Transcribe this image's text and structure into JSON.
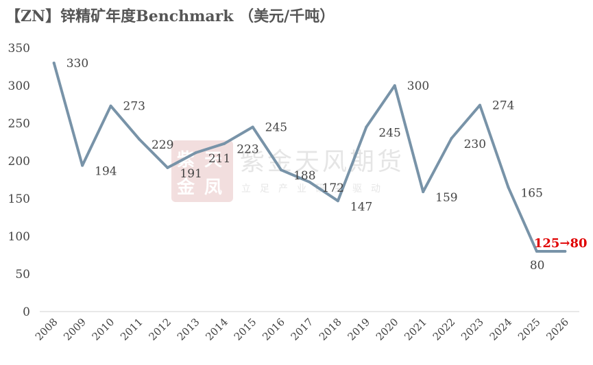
{
  "chart_data": {
    "type": "line",
    "title": "【ZN】锌精矿年度Benchmark （美元/千吨）",
    "categories": [
      "2008",
      "2009",
      "2010",
      "2011",
      "2012",
      "2013",
      "2014",
      "2015",
      "2016",
      "2017",
      "2018",
      "2019",
      "2020",
      "2021",
      "2022",
      "2023",
      "2024",
      "2025",
      "2026"
    ],
    "series": [
      {
        "values": [
          330,
          194,
          273,
          229,
          191,
          211,
          223,
          245,
          188,
          172,
          147,
          245,
          300,
          159,
          230,
          274,
          165,
          80,
          80
        ],
        "color": "#7893a8"
      }
    ],
    "data_labels": [
      "330",
      "194",
      "273",
      "229",
      "191",
      "211",
      "223",
      "245",
      "188",
      "172",
      "147",
      "245",
      "300",
      "159",
      "230",
      "274",
      "165",
      "80",
      ""
    ],
    "annotation": {
      "text": "125→80",
      "color": "#e00000"
    },
    "yticks": [
      0,
      50,
      100,
      150,
      200,
      250,
      300,
      350
    ],
    "ylim": [
      0,
      350
    ],
    "grid": false,
    "legend": "none",
    "axis_color": "#d9d9d9"
  },
  "watermark": {
    "name": "紫金天风期货",
    "slogan": "立足产业研究驱动",
    "seal_text": "紫天金凤"
  }
}
